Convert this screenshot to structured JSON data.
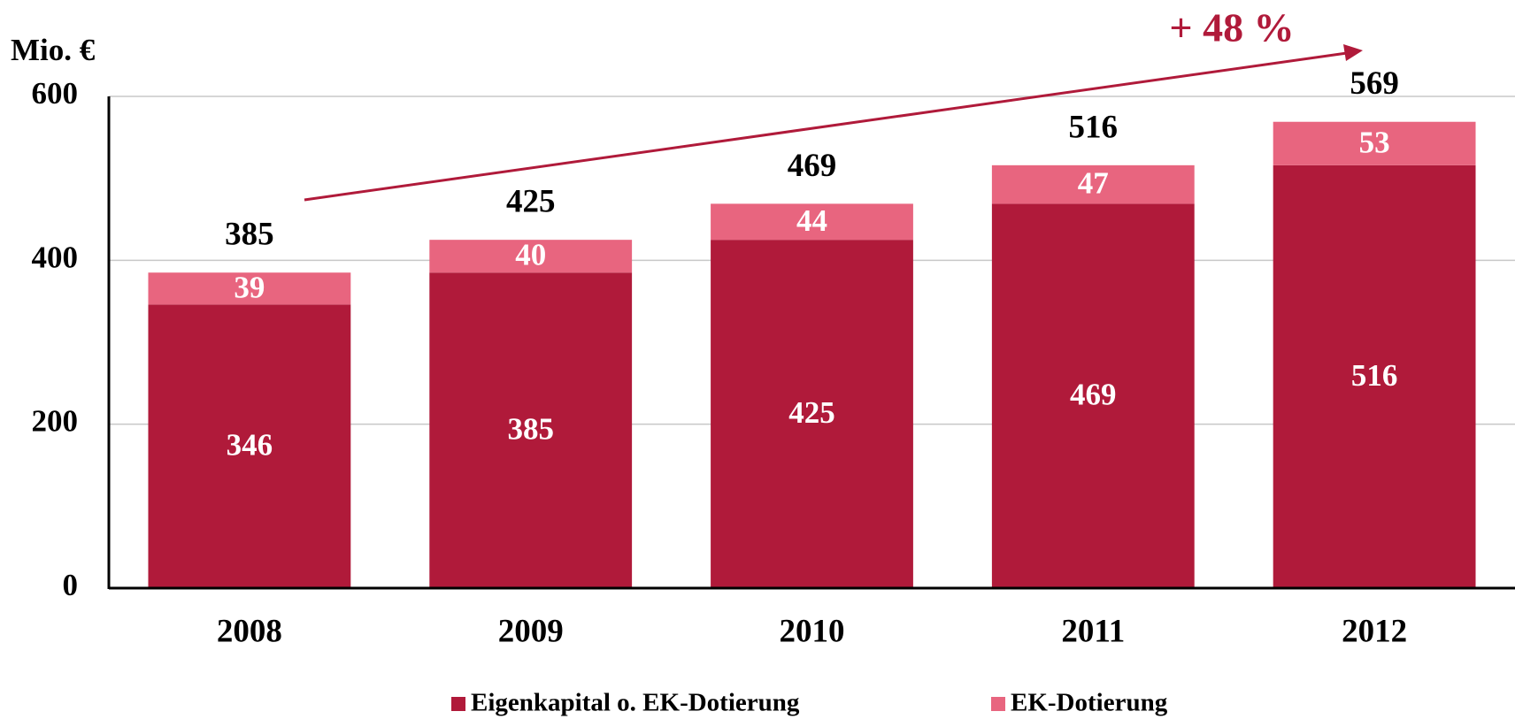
{
  "chart_data": {
    "type": "stacked_bar",
    "y_axis_label": "Mio. €",
    "annotation": "+ 48 %",
    "categories": [
      "2008",
      "2009",
      "2010",
      "2011",
      "2012"
    ],
    "series": [
      {
        "name": "Eigenkapital o. EK-Dotierung",
        "color": "#b01a3a",
        "values": [
          346,
          385,
          425,
          469,
          516
        ]
      },
      {
        "name": "EK-Dotierung",
        "color": "#e8657f",
        "values": [
          39,
          40,
          44,
          47,
          53
        ]
      }
    ],
    "totals": [
      385,
      425,
      469,
      516,
      569
    ],
    "ylim": [
      0,
      600
    ],
    "yticks": [
      0,
      200,
      400,
      600
    ],
    "grid": true
  }
}
